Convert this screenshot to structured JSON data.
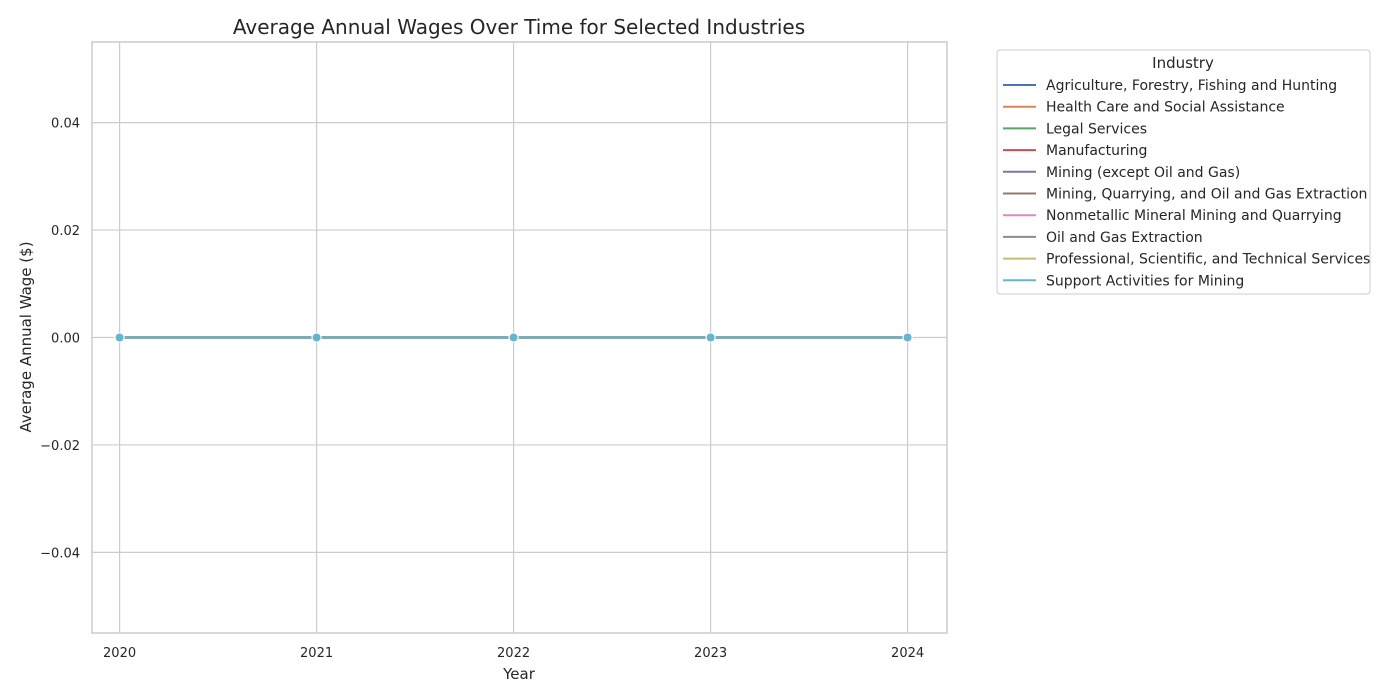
{
  "chart_data": {
    "type": "line",
    "title": "Average Annual Wages Over Time for Selected Industries",
    "xlabel": "Year",
    "ylabel": "Average Annual Wage ($)",
    "x": [
      2020,
      2021,
      2022,
      2023,
      2024
    ],
    "xlim": [
      2019.86,
      2024.2
    ],
    "ylim": [
      -0.055,
      0.055
    ],
    "yticks": [
      -0.04,
      -0.02,
      0.0,
      0.02,
      0.04
    ],
    "ytick_labels": [
      "−0.04",
      "−0.02",
      "0.00",
      "0.02",
      "0.04"
    ],
    "grid": true,
    "markers": true,
    "legend": {
      "title": "Industry",
      "placement": "outside-upper-right"
    },
    "series": [
      {
        "name": "Agriculture, Forestry, Fishing and Hunting",
        "color": "#4c72b0",
        "values": [
          0,
          0,
          0,
          0,
          0
        ]
      },
      {
        "name": "Health Care and Social Assistance",
        "color": "#dd8452",
        "values": [
          0,
          0,
          0,
          0,
          0
        ]
      },
      {
        "name": "Legal Services",
        "color": "#55a868",
        "values": [
          0,
          0,
          0,
          0,
          0
        ]
      },
      {
        "name": "Manufacturing",
        "color": "#c44e52",
        "values": [
          0,
          0,
          0,
          0,
          0
        ]
      },
      {
        "name": "Mining (except Oil and Gas)",
        "color": "#8172b3",
        "values": [
          0,
          0,
          0,
          0,
          0
        ]
      },
      {
        "name": "Mining, Quarrying, and Oil and Gas Extraction",
        "color": "#937860",
        "values": [
          0,
          0,
          0,
          0,
          0
        ]
      },
      {
        "name": "Nonmetallic Mineral Mining and Quarrying",
        "color": "#da8bc3",
        "values": [
          0,
          0,
          0,
          0,
          0
        ]
      },
      {
        "name": "Oil and Gas Extraction",
        "color": "#8c8c8c",
        "values": [
          0,
          0,
          0,
          0,
          0
        ]
      },
      {
        "name": "Professional, Scientific, and Technical Services",
        "color": "#ccb974",
        "values": [
          0,
          0,
          0,
          0,
          0
        ]
      },
      {
        "name": "Support Activities for Mining",
        "color": "#64b5cd",
        "values": [
          0,
          0,
          0,
          0,
          0
        ]
      }
    ]
  }
}
